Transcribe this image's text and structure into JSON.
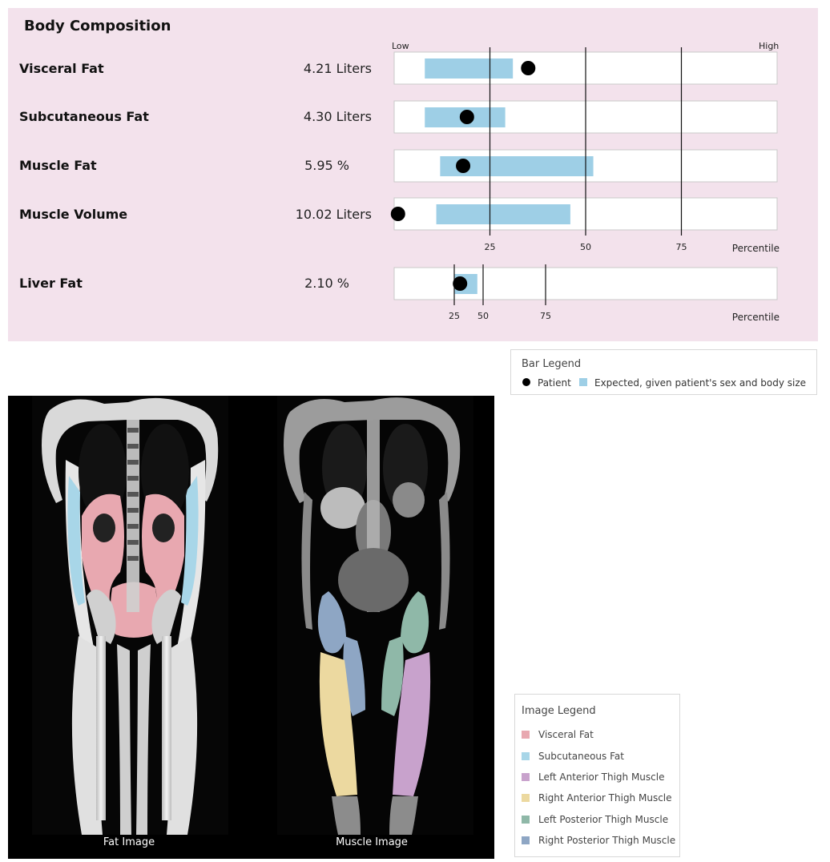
{
  "chart_data": {
    "type": "bar",
    "title": "Body Composition",
    "scale_low_label": "Low",
    "scale_high_label": "High",
    "axis_label": "Percentile",
    "rows": [
      {
        "name": "Visceral Fat",
        "value_text": "4.21 Liters",
        "expected_range": [
          8,
          31
        ],
        "patient": 35,
        "group": "main"
      },
      {
        "name": "Subcutaneous Fat",
        "value_text": "4.30 Liters",
        "expected_range": [
          8,
          29
        ],
        "patient": 19,
        "group": "main"
      },
      {
        "name": "Muscle Fat",
        "value_text": "5.95 %",
        "expected_range": [
          12,
          52
        ],
        "patient": 18,
        "group": "main"
      },
      {
        "name": "Muscle Volume",
        "value_text": "10.02 Liters",
        "expected_range": [
          11,
          46
        ],
        "patient": 1,
        "group": "main"
      },
      {
        "name": "Liver Fat",
        "value_text": "2.10 %",
        "expected_range": [
          25,
          45
        ],
        "patient": 30,
        "group": "liver"
      }
    ],
    "main_ticks": [
      25,
      50,
      75
    ],
    "liver_ticks": [
      25,
      50,
      75
    ],
    "colors": {
      "expected": "#9ecfe6",
      "patient": "#000000",
      "background": "#f3e2ec"
    }
  },
  "bar_legend": {
    "title": "Bar Legend",
    "patient_label": "Patient",
    "expected_label": "Expected, given patient's sex and body size"
  },
  "images": {
    "fat_caption": "Fat Image",
    "muscle_caption": "Muscle Image"
  },
  "image_legend": {
    "title": "Image Legend",
    "items": [
      {
        "label": "Visceral Fat",
        "color": "#e8a8b0"
      },
      {
        "label": "Subcutaneous Fat",
        "color": "#a8d6e8"
      },
      {
        "label": "Left Anterior Thigh Muscle",
        "color": "#c8a2cc"
      },
      {
        "label": "Right Anterior Thigh Muscle",
        "color": "#ecd9a0"
      },
      {
        "label": "Left Posterior Thigh Muscle",
        "color": "#8fb8a8"
      },
      {
        "label": "Right Posterior Thigh Muscle",
        "color": "#8ea6c4"
      }
    ]
  }
}
